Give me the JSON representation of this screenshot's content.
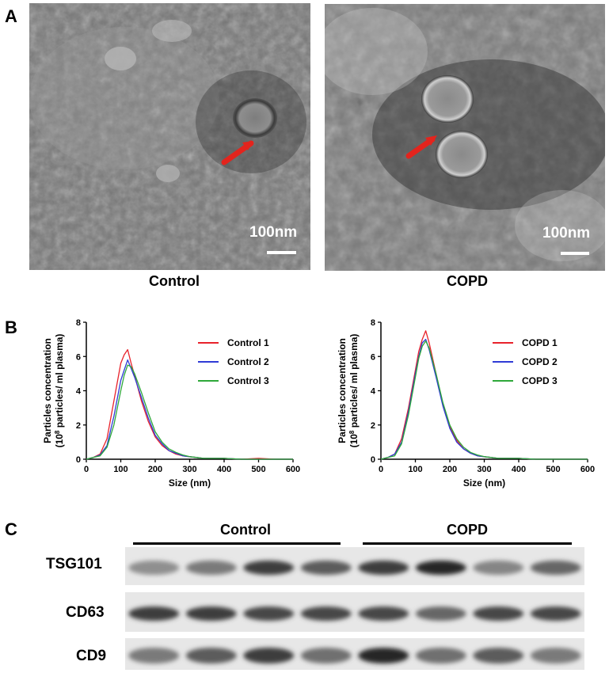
{
  "panels": {
    "a": {
      "letter": "A",
      "images": [
        {
          "caption": "Control",
          "scale_label": "100nm"
        },
        {
          "caption": "COPD",
          "scale_label": "100nm"
        }
      ]
    },
    "b": {
      "letter": "B"
    },
    "c": {
      "letter": "C",
      "groups": [
        "Control",
        "COPD"
      ],
      "bands": [
        {
          "label": "TSG101",
          "intensities": [
            0.45,
            0.55,
            0.85,
            0.7,
            0.85,
            0.95,
            0.5,
            0.65
          ]
        },
        {
          "label": "CD63",
          "intensities": [
            0.85,
            0.85,
            0.8,
            0.8,
            0.8,
            0.65,
            0.8,
            0.8
          ]
        },
        {
          "label": "CD9",
          "intensities": [
            0.55,
            0.7,
            0.85,
            0.6,
            0.95,
            0.6,
            0.7,
            0.55
          ]
        }
      ]
    }
  },
  "chart_data": [
    {
      "type": "line",
      "xlabel": "Size (nm)",
      "ylabel_line1": "Particles concentration",
      "ylabel_line2_pre": "(10",
      "ylabel_line2_sup": "8",
      "ylabel_line2_post": " particles/ ml plasma)",
      "xlim": [
        0,
        600
      ],
      "ylim": [
        0,
        8
      ],
      "xticks": [
        0,
        100,
        200,
        300,
        400,
        500,
        600
      ],
      "yticks": [
        0,
        2,
        4,
        6,
        8
      ],
      "legend_position": "top-right",
      "x": [
        0,
        20,
        40,
        60,
        80,
        100,
        110,
        120,
        130,
        140,
        160,
        180,
        200,
        220,
        240,
        260,
        280,
        300,
        320,
        340,
        360,
        400,
        450,
        500,
        550,
        600
      ],
      "series": [
        {
          "name": "Control 1",
          "color": "#e8222b",
          "values": [
            0,
            0.1,
            0.3,
            1.2,
            3.4,
            5.6,
            6.1,
            6.4,
            5.6,
            4.9,
            3.4,
            2.2,
            1.3,
            0.8,
            0.5,
            0.3,
            0.2,
            0.15,
            0.1,
            0.05,
            0.05,
            0.05,
            0,
            0.05,
            0,
            0
          ]
        },
        {
          "name": "Control 2",
          "color": "#2f3bd6",
          "values": [
            0,
            0.1,
            0.25,
            0.8,
            2.5,
            4.6,
            5.2,
            5.8,
            5.3,
            4.8,
            3.6,
            2.4,
            1.4,
            0.9,
            0.5,
            0.35,
            0.2,
            0.15,
            0.1,
            0.05,
            0.05,
            0.05,
            0,
            0,
            0,
            0
          ]
        },
        {
          "name": "Control 3",
          "color": "#2ea83a",
          "values": [
            0,
            0.1,
            0.2,
            0.7,
            2.0,
            4.0,
            4.9,
            5.5,
            5.4,
            5.0,
            3.9,
            2.7,
            1.6,
            1.0,
            0.6,
            0.4,
            0.25,
            0.15,
            0.1,
            0.05,
            0.05,
            0.05,
            0,
            0,
            0,
            0
          ]
        }
      ]
    },
    {
      "type": "line",
      "xlabel": "Size (nm)",
      "ylabel_line1": "Particles concentration",
      "ylabel_line2_pre": "(10",
      "ylabel_line2_sup": "8",
      "ylabel_line2_post": " particles/ ml plasma)",
      "xlim": [
        0,
        600
      ],
      "ylim": [
        0,
        8
      ],
      "xticks": [
        0,
        100,
        200,
        300,
        400,
        500,
        600
      ],
      "yticks": [
        0,
        2,
        4,
        6,
        8
      ],
      "legend_position": "top-right",
      "x": [
        0,
        20,
        40,
        60,
        80,
        100,
        110,
        120,
        130,
        140,
        160,
        180,
        200,
        220,
        240,
        260,
        280,
        300,
        320,
        340,
        360,
        400,
        450,
        500,
        550,
        600
      ],
      "series": [
        {
          "name": "COPD 1",
          "color": "#e8222b",
          "values": [
            0,
            0.1,
            0.3,
            1.2,
            3.0,
            5.2,
            6.3,
            7.0,
            7.5,
            6.8,
            5.0,
            3.2,
            1.9,
            1.1,
            0.6,
            0.35,
            0.2,
            0.15,
            0.1,
            0.05,
            0.05,
            0.05,
            0,
            0,
            0,
            0
          ]
        },
        {
          "name": "COPD 2",
          "color": "#2f3bd6",
          "values": [
            0,
            0.1,
            0.3,
            1.0,
            2.8,
            5.0,
            6.0,
            6.8,
            7.0,
            6.4,
            4.8,
            3.1,
            1.8,
            1.0,
            0.6,
            0.35,
            0.2,
            0.15,
            0.1,
            0.05,
            0.05,
            0.05,
            0,
            0,
            0,
            0
          ]
        },
        {
          "name": "COPD 3",
          "color": "#2ea83a",
          "values": [
            0,
            0.1,
            0.2,
            0.9,
            2.6,
            4.8,
            5.9,
            6.6,
            6.9,
            6.5,
            5.0,
            3.3,
            2.0,
            1.2,
            0.7,
            0.4,
            0.25,
            0.15,
            0.1,
            0.05,
            0.05,
            0.05,
            0,
            0,
            0,
            0
          ]
        }
      ]
    }
  ]
}
